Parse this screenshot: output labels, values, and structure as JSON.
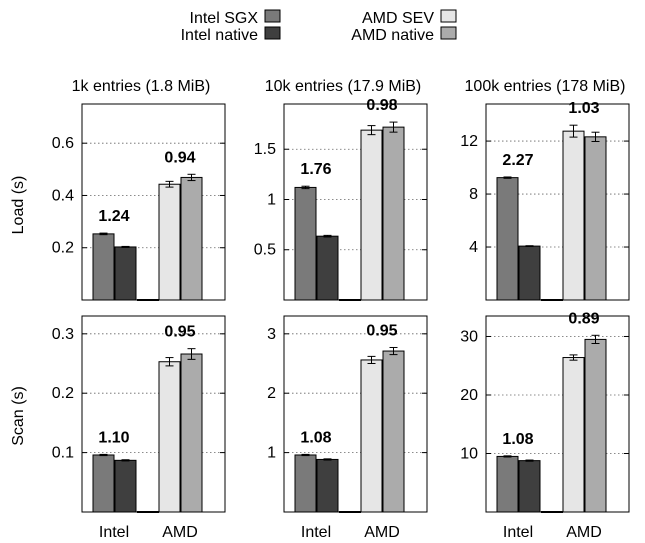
{
  "legend": [
    {
      "key": "intel_sgx",
      "label": "Intel SGX",
      "color": "#7a7a7a"
    },
    {
      "key": "amd_sev",
      "label": "AMD SEV",
      "color": "#e6e6e6"
    },
    {
      "key": "intel_native",
      "label": "Intel native",
      "color": "#3f3f3f"
    },
    {
      "key": "amd_native",
      "label": "AMD native",
      "color": "#ababab"
    }
  ],
  "chart_data": {
    "type": "bar",
    "group_labels": [
      "Intel",
      "AMD"
    ],
    "row_labels": [
      "Load (s)",
      "Scan (s)"
    ],
    "columns": [
      {
        "title": "1k entries (1.8 MiB)",
        "load": {
          "ylim": [
            0,
            0.75
          ],
          "ticks": [
            0.2,
            0.4,
            0.6
          ],
          "tick_labels": [
            "0.2",
            "0.4",
            "0.6"
          ],
          "values": {
            "intel_sgx": 0.253,
            "intel_native": 0.203,
            "amd_sev": 0.443,
            "amd_native": 0.469
          },
          "errors": {
            "intel_sgx": 0.003,
            "intel_native": 0.002,
            "amd_sev": 0.011,
            "amd_native": 0.012
          },
          "ratios": {
            "intel": "1.24",
            "amd": "0.94"
          }
        },
        "scan": {
          "ylim": [
            0,
            0.33
          ],
          "ticks": [
            0.1,
            0.2,
            0.3
          ],
          "tick_labels": [
            "0.1",
            "0.2",
            "0.3"
          ],
          "values": {
            "intel_sgx": 0.096,
            "intel_native": 0.087,
            "amd_sev": 0.253,
            "amd_native": 0.266
          },
          "errors": {
            "intel_sgx": 0.001,
            "intel_native": 0.001,
            "amd_sev": 0.007,
            "amd_native": 0.009
          },
          "ratios": {
            "intel": "1.10",
            "amd": "0.95"
          }
        }
      },
      {
        "title": "10k entries (17.9 MiB)",
        "load": {
          "ylim": [
            0,
            1.95
          ],
          "ticks": [
            0.5,
            1,
            1.5
          ],
          "tick_labels": [
            "0.5",
            "1",
            "1.5"
          ],
          "values": {
            "intel_sgx": 1.12,
            "intel_native": 0.635,
            "amd_sev": 1.69,
            "amd_native": 1.72
          },
          "errors": {
            "intel_sgx": 0.012,
            "intel_native": 0.008,
            "amd_sev": 0.045,
            "amd_native": 0.05
          },
          "ratios": {
            "intel": "1.76",
            "amd": "0.98"
          }
        },
        "scan": {
          "ylim": [
            0,
            3.3
          ],
          "ticks": [
            1,
            2,
            3
          ],
          "tick_labels": [
            "1",
            "2",
            "3"
          ],
          "values": {
            "intel_sgx": 0.96,
            "intel_native": 0.885,
            "amd_sev": 2.56,
            "amd_native": 2.71
          },
          "errors": {
            "intel_sgx": 0.01,
            "intel_native": 0.01,
            "amd_sev": 0.06,
            "amd_native": 0.06
          },
          "ratios": {
            "intel": "1.08",
            "amd": "0.95"
          }
        }
      },
      {
        "title": "100k entries (178 MiB)",
        "load": {
          "ylim": [
            0,
            14.8
          ],
          "ticks": [
            4,
            8,
            12
          ],
          "tick_labels": [
            "4",
            "8",
            "12"
          ],
          "values": {
            "intel_sgx": 9.24,
            "intel_native": 4.07,
            "amd_sev": 12.75,
            "amd_native": 12.32
          },
          "errors": {
            "intel_sgx": 0.05,
            "intel_native": 0.03,
            "amd_sev": 0.45,
            "amd_native": 0.35
          },
          "ratios": {
            "intel": "2.27",
            "amd": "1.03"
          }
        },
        "scan": {
          "ylim": [
            0,
            33.5
          ],
          "ticks": [
            10,
            20,
            30
          ],
          "tick_labels": [
            "10",
            "20",
            "30"
          ],
          "values": {
            "intel_sgx": 9.5,
            "intel_native": 8.78,
            "amd_sev": 26.4,
            "amd_native": 29.5
          },
          "errors": {
            "intel_sgx": 0.1,
            "intel_native": 0.1,
            "amd_sev": 0.45,
            "amd_native": 0.7
          },
          "ratios": {
            "intel": "1.08",
            "amd": "0.89"
          }
        }
      }
    ],
    "grid": "horizontal dotted"
  }
}
